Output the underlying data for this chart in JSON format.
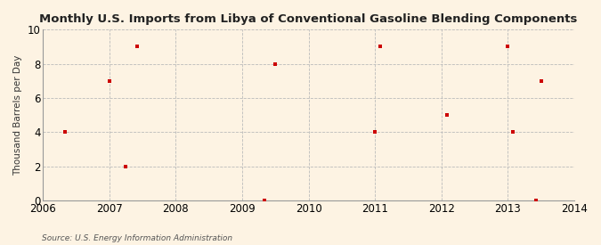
{
  "title": "Monthly U.S. Imports from Libya of Conventional Gasoline Blending Components",
  "ylabel": "Thousand Barrels per Day",
  "source": "Source: U.S. Energy Information Administration",
  "xlim": [
    2006,
    2014
  ],
  "ylim": [
    0,
    10
  ],
  "yticks": [
    0,
    2,
    4,
    6,
    8,
    10
  ],
  "xticks": [
    2006,
    2007,
    2008,
    2009,
    2010,
    2011,
    2012,
    2013,
    2014
  ],
  "background_color": "#fdf3e3",
  "plot_bg_color": "#fdf3e3",
  "grid_color": "#bbbbbb",
  "marker_color": "#cc0000",
  "data_x": [
    2006.33,
    2007.0,
    2007.25,
    2007.42,
    2009.33,
    2009.5,
    2011.0,
    2011.08,
    2012.08,
    2013.0,
    2013.08,
    2013.42,
    2013.5
  ],
  "data_y": [
    4,
    7,
    2,
    9,
    0,
    8,
    4,
    9,
    5,
    9,
    4,
    0,
    7
  ]
}
